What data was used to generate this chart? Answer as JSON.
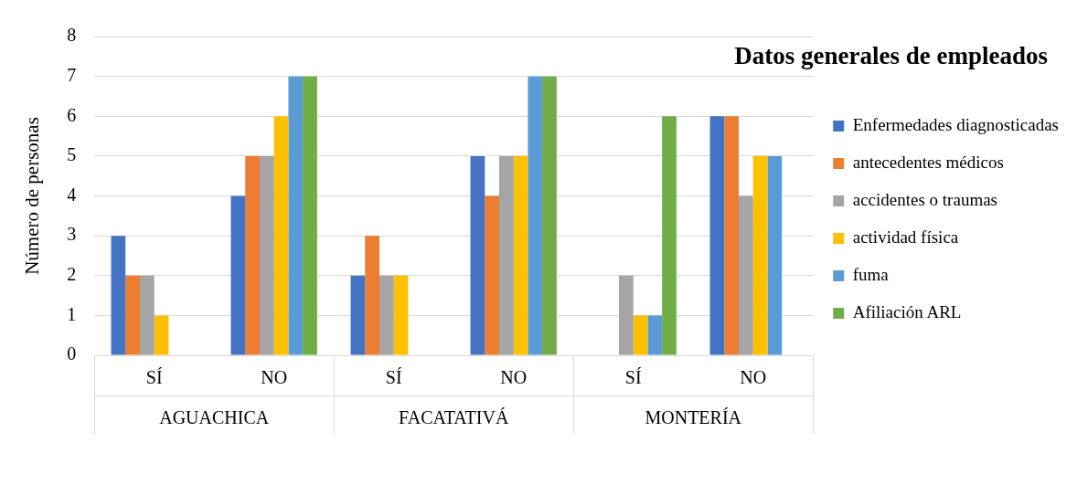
{
  "chart_data": {
    "type": "bar",
    "title": "Datos generales de empleados",
    "ylabel": "Número de personas",
    "categories": [
      "SÍ",
      "NO",
      "SÍ",
      "NO",
      "SÍ",
      "NO"
    ],
    "annotations": [
      "AGUACHICA",
      "FACATATIVÁ",
      "MONTERÍA"
    ],
    "series": [
      {
        "name": "Enfermedades diagnosticadas",
        "color": "#4472c4",
        "values": [
          3,
          4,
          2,
          5,
          0,
          6
        ]
      },
      {
        "name": "antecedentes médicos",
        "color": "#ed7d31",
        "values": [
          2,
          5,
          3,
          4,
          0,
          6
        ]
      },
      {
        "name": "accidentes o traumas",
        "color": "#a5a5a5",
        "values": [
          2,
          5,
          2,
          5,
          2,
          4
        ]
      },
      {
        "name": "actividad física",
        "color": "#ffc000",
        "values": [
          1,
          6,
          2,
          5,
          1,
          5
        ]
      },
      {
        "name": "fuma",
        "color": "#5b9bd5",
        "values": [
          0,
          7,
          0,
          7,
          1,
          5
        ]
      },
      {
        "name": "Afiliación ARL",
        "color": "#70ad47",
        "values": [
          0,
          7,
          0,
          7,
          6,
          0
        ]
      }
    ],
    "ylim": [
      0,
      8
    ],
    "yticks": [
      0,
      1,
      2,
      3,
      4,
      5,
      6,
      7,
      8
    ],
    "grid": "y",
    "legend": "right"
  }
}
